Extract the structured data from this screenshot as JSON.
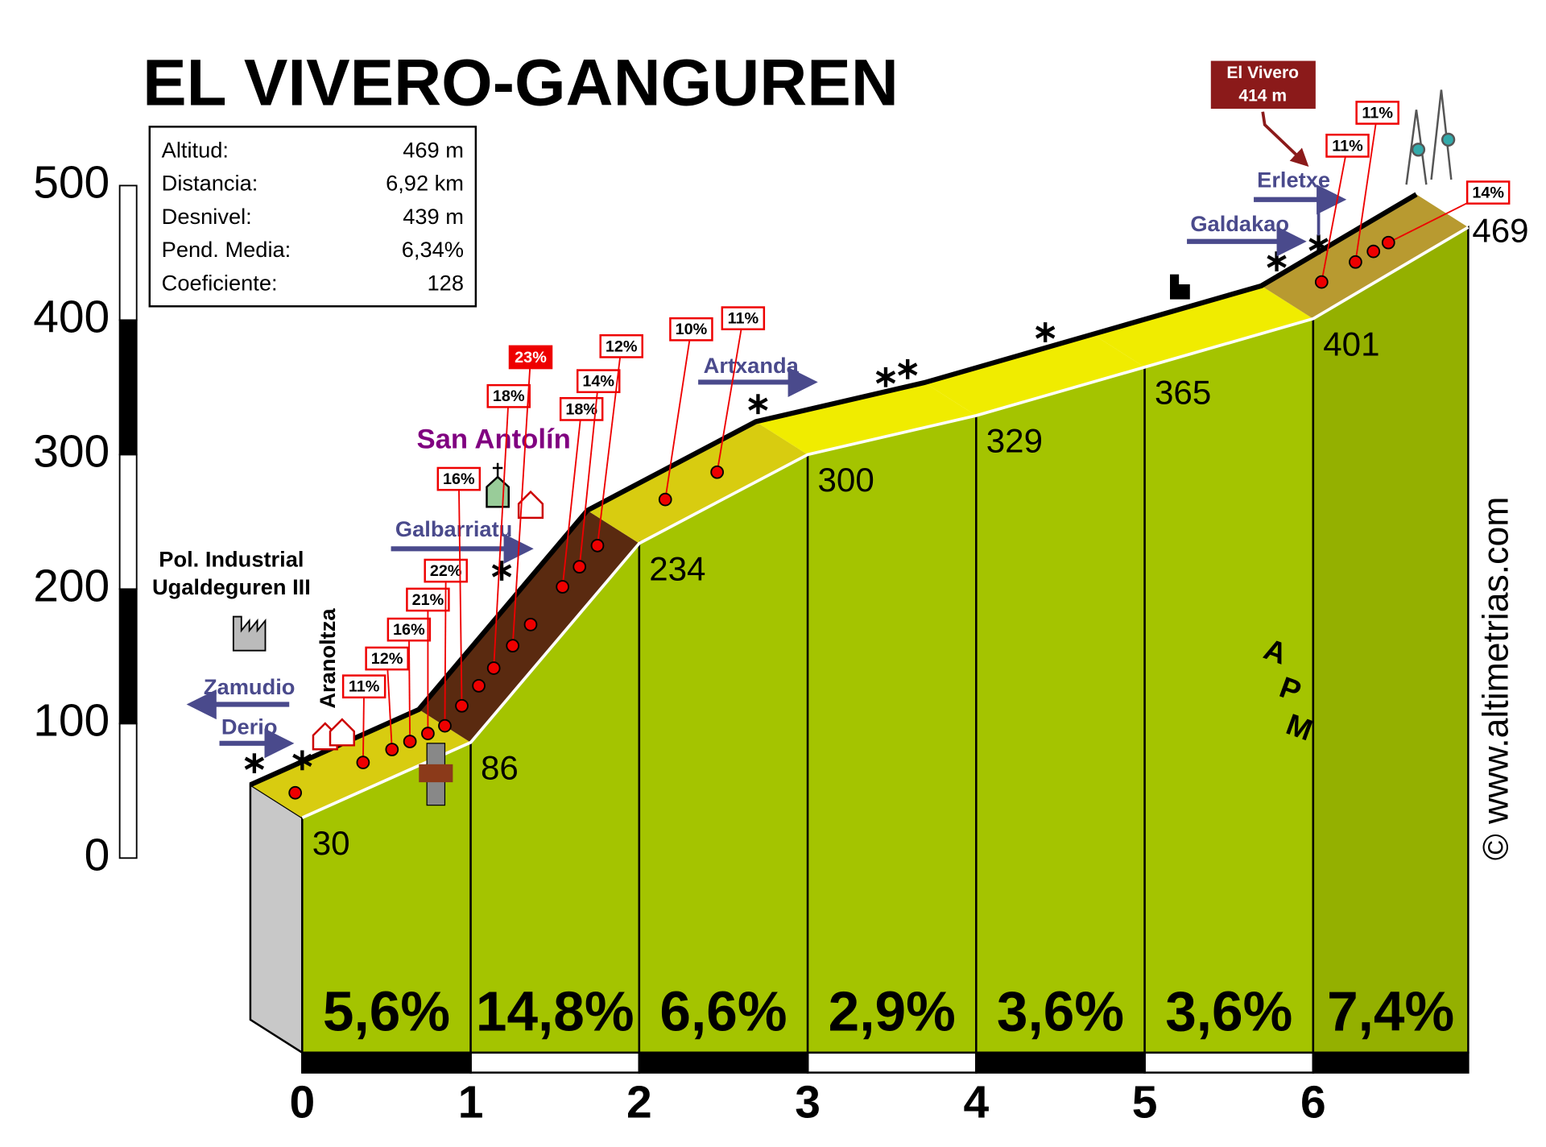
{
  "chart_data": {
    "type": "profile",
    "title": "EL VIVERO-GANGUREN",
    "stats": [
      [
        "Altitud:",
        "469 m"
      ],
      [
        "Distancia:",
        "6,92 km"
      ],
      [
        "Desnivel:",
        "439 m"
      ],
      [
        "Pend. Media:",
        "6,34%"
      ],
      [
        "Coeficiente:",
        "128"
      ]
    ],
    "x": [
      0,
      1,
      2,
      3,
      4,
      5,
      6,
      6.92
    ],
    "values": [
      30,
      86,
      234,
      300,
      329,
      365,
      401,
      469
    ],
    "segment_gradients": {
      "values": [
        5.6,
        14.8,
        6.6,
        2.9,
        3.6,
        3.6,
        7.4
      ],
      "value_labels": [
        "5,6%",
        "14,8%",
        "6,6%",
        "2,9%",
        "3,6%",
        "3,6%",
        "7,4%"
      ]
    },
    "xlim": [
      0,
      6.92
    ],
    "xticks": [
      0,
      1,
      2,
      3,
      4,
      5,
      6
    ],
    "ylim": [
      0,
      500
    ],
    "yticks": [
      0,
      100,
      200,
      300,
      400,
      500
    ],
    "places": [
      "Pol. Industrial",
      "Ugaldeguren III",
      "Zamudio",
      "Derio",
      "Aranoltza",
      "Galbarriatu",
      "San Antolín",
      "Artxanda",
      "Galdakao",
      "Erletxe"
    ],
    "gradient_flags": [
      "11%",
      "12%",
      "16%",
      "21%",
      "22%",
      "16%",
      "18%",
      "23%",
      "18%",
      "14%",
      "12%",
      "10%",
      "11%",
      "11%",
      "11%",
      "14%"
    ],
    "summit": [
      "El Vivero",
      "414 m"
    ],
    "logo_letters": [
      "A",
      "P",
      "M"
    ],
    "credit": "© www.altimetrias.com"
  }
}
